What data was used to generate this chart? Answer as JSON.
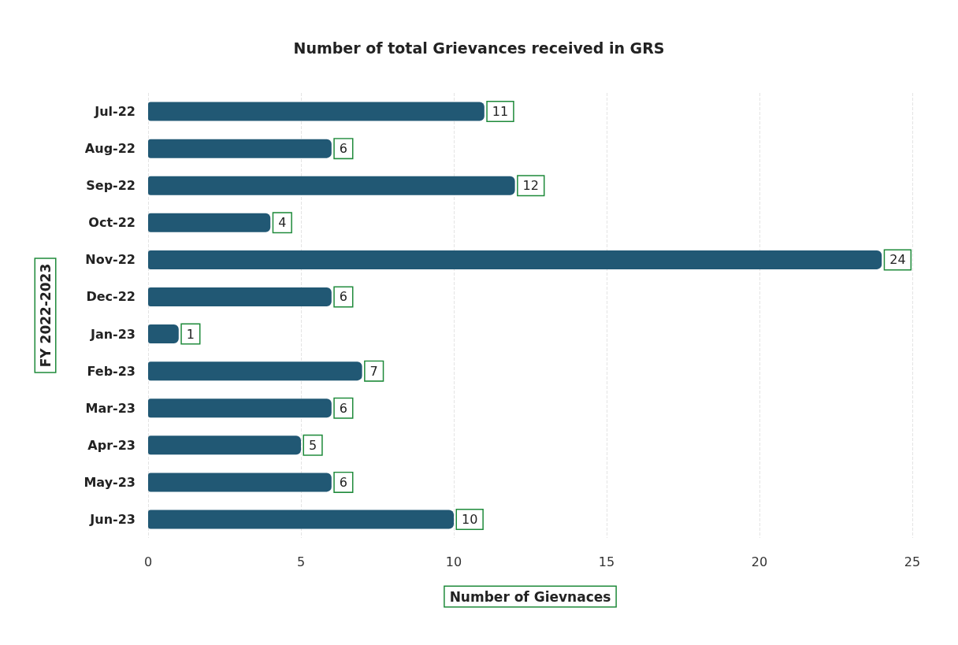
{
  "chart_data": {
    "type": "bar",
    "orientation": "horizontal",
    "title": "Number of total Grievances received in GRS",
    "xlabel": "Number of Gievnaces",
    "ylabel": "FY 2022-2023",
    "categories": [
      "Jul-22",
      "Aug-22",
      "Sep-22",
      "Oct-22",
      "Nov-22",
      "Dec-22",
      "Jan-23",
      "Feb-23",
      "Mar-23",
      "Apr-23",
      "May-23",
      "Jun-23"
    ],
    "values": [
      11,
      6,
      12,
      4,
      24,
      6,
      1,
      7,
      6,
      5,
      6,
      10
    ],
    "color": "#215874",
    "xlim": [
      0,
      25
    ],
    "xticks": [
      0,
      5,
      10,
      15,
      20,
      25
    ],
    "grid": "x",
    "data_labels": true
  }
}
